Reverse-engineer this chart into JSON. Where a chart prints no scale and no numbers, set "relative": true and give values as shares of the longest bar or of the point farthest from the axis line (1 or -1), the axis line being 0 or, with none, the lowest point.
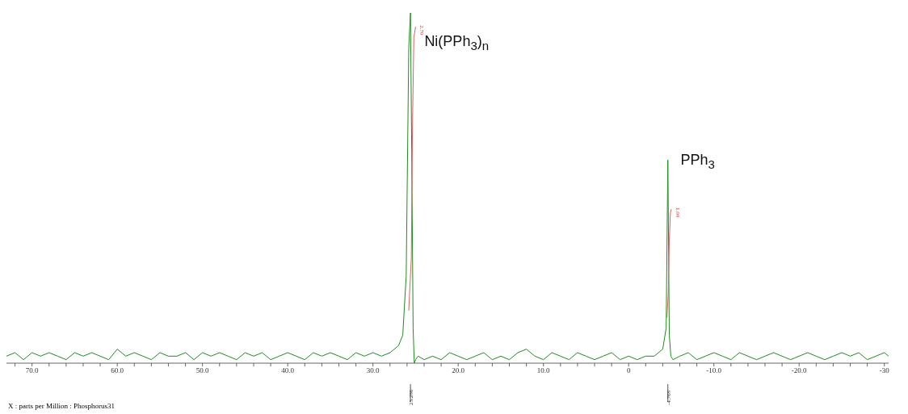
{
  "chart_data": {
    "type": "line",
    "relative": true,
    "xlabel": "X : parts per Million : Phosphorus31",
    "xlim": [
      73,
      -30.5
    ],
    "xticks": [
      {
        "value": 72,
        "label": null
      },
      {
        "value": 70,
        "label": "70.0"
      },
      {
        "value": 68,
        "label": null
      },
      {
        "value": 66,
        "label": null
      },
      {
        "value": 64,
        "label": null
      },
      {
        "value": 62,
        "label": null
      },
      {
        "value": 60,
        "label": "60.0"
      },
      {
        "value": 58,
        "label": null
      },
      {
        "value": 56,
        "label": null
      },
      {
        "value": 54,
        "label": null
      },
      {
        "value": 52,
        "label": null
      },
      {
        "value": 50,
        "label": "50.0"
      },
      {
        "value": 48,
        "label": null
      },
      {
        "value": 46,
        "label": null
      },
      {
        "value": 44,
        "label": null
      },
      {
        "value": 42,
        "label": null
      },
      {
        "value": 40,
        "label": "40.0"
      },
      {
        "value": 38,
        "label": null
      },
      {
        "value": 36,
        "label": null
      },
      {
        "value": 34,
        "label": null
      },
      {
        "value": 32,
        "label": null
      },
      {
        "value": 30,
        "label": "30.0"
      },
      {
        "value": 28,
        "label": null
      },
      {
        "value": 26,
        "label": null
      },
      {
        "value": 24,
        "label": null
      },
      {
        "value": 22,
        "label": null
      },
      {
        "value": 20,
        "label": "20.0"
      },
      {
        "value": 18,
        "label": null
      },
      {
        "value": 16,
        "label": null
      },
      {
        "value": 14,
        "label": null
      },
      {
        "value": 12,
        "label": null
      },
      {
        "value": 10,
        "label": "10.0"
      },
      {
        "value": 8,
        "label": null
      },
      {
        "value": 6,
        "label": null
      },
      {
        "value": 4,
        "label": null
      },
      {
        "value": 2,
        "label": null
      },
      {
        "value": 0,
        "label": "0"
      },
      {
        "value": -2,
        "label": null
      },
      {
        "value": -4,
        "label": null
      },
      {
        "value": -6,
        "label": null
      },
      {
        "value": -8,
        "label": null
      },
      {
        "value": -10,
        "label": "-10.0"
      },
      {
        "value": -12,
        "label": null
      },
      {
        "value": -14,
        "label": null
      },
      {
        "value": -16,
        "label": null
      },
      {
        "value": -18,
        "label": null
      },
      {
        "value": -20,
        "label": "-20.0"
      },
      {
        "value": -22,
        "label": null
      },
      {
        "value": -24,
        "label": null
      },
      {
        "value": -26,
        "label": null
      },
      {
        "value": -28,
        "label": null
      },
      {
        "value": -30,
        "label": "-30"
      }
    ],
    "marker": "none",
    "line_style": "solid",
    "series": [
      {
        "color": "#1f8c1f",
        "x": [
          73,
          72,
          71,
          70,
          69,
          68,
          67,
          66,
          65,
          64,
          63,
          62,
          61,
          60,
          59,
          58,
          57,
          56,
          55,
          54,
          53,
          52,
          51,
          50,
          49,
          48,
          47,
          46,
          45,
          44,
          43,
          42,
          41,
          40,
          39,
          38,
          37,
          36,
          35,
          34,
          33,
          32,
          31,
          30,
          29,
          28,
          27,
          26.5,
          26.1,
          25.8,
          25.6,
          25.45,
          25.29,
          25.15,
          25.0,
          24.7,
          24,
          23,
          22,
          21,
          20,
          19,
          18,
          17,
          16,
          15,
          14,
          13,
          12,
          11,
          10,
          9,
          8,
          7,
          6,
          5,
          4,
          3,
          2,
          1,
          0,
          -1,
          -2,
          -3,
          -4,
          -4.4,
          -4.6,
          -4.77,
          -4.95,
          -5.2,
          -6,
          -7,
          -8,
          -9,
          -10,
          -11,
          -12,
          -13,
          -14,
          -15,
          -16,
          -17,
          -18,
          -19,
          -20,
          -21,
          -22,
          -23,
          -24,
          -25,
          -26,
          -27,
          -28,
          -29,
          -30,
          -30.5
        ],
        "values": [
          0.02,
          0.03,
          0.01,
          0.03,
          0.02,
          0.03,
          0.02,
          0.01,
          0.03,
          0.02,
          0.03,
          0.02,
          0.01,
          0.04,
          0.02,
          0.03,
          0.02,
          0.01,
          0.03,
          0.02,
          0.02,
          0.03,
          0.01,
          0.03,
          0.02,
          0.03,
          0.02,
          0.01,
          0.03,
          0.02,
          0.03,
          0.01,
          0.02,
          0.03,
          0.02,
          0.01,
          0.03,
          0.02,
          0.03,
          0.02,
          0.01,
          0.03,
          0.02,
          0.03,
          0.02,
          0.03,
          0.05,
          0.08,
          0.25,
          0.9,
          1.0,
          0.6,
          0.1,
          0.0,
          0.01,
          0.02,
          0.01,
          0.02,
          0.01,
          0.03,
          0.02,
          0.01,
          0.02,
          0.03,
          0.01,
          0.02,
          0.01,
          0.03,
          0.04,
          0.02,
          0.01,
          0.03,
          0.02,
          0.01,
          0.03,
          0.02,
          0.01,
          0.02,
          0.03,
          0.01,
          0.02,
          0.01,
          0.02,
          0.02,
          0.04,
          0.1,
          0.58,
          0.08,
          0.02,
          0.01,
          0.02,
          0.03,
          0.01,
          0.02,
          0.03,
          0.02,
          0.01,
          0.03,
          0.02,
          0.01,
          0.02,
          0.03,
          0.02,
          0.01,
          0.02,
          0.03,
          0.02,
          0.01,
          0.02,
          0.03,
          0.02,
          0.03,
          0.01,
          0.02,
          0.03,
          0.02
        ]
      },
      {
        "color": "#e06060",
        "x": [
          25.8,
          25.5,
          25.35,
          25.2,
          25.0
        ],
        "values": [
          0.15,
          0.3,
          0.7,
          0.93,
          0.96
        ]
      },
      {
        "color": "#e06060",
        "x": [
          -4.5,
          -4.65,
          -4.77,
          -4.9,
          -5.0
        ],
        "values": [
          0.13,
          0.2,
          0.35,
          0.43,
          0.44
        ]
      }
    ],
    "annotations": [
      {
        "text": "Ni(PPh$_{3}$)$_{n}$",
        "x": 25.29,
        "y": 0.92
      },
      {
        "text": "PPh$_{3}$",
        "x": -4.77,
        "y": 0.58
      },
      {
        "text": "2.70",
        "x": 25.0,
        "y": 0.96
      },
      {
        "text": "1.00",
        "x": -5.0,
        "y": 0.44
      },
      "25.286",
      "-4.768"
    ]
  }
}
